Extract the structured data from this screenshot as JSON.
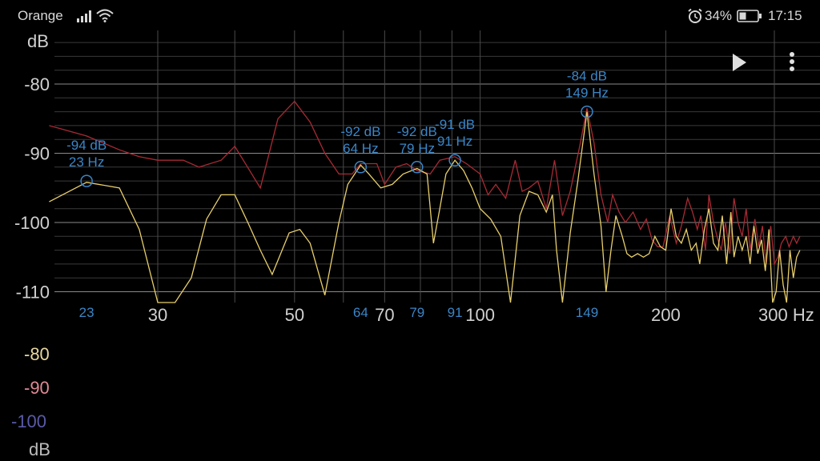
{
  "status_bar": {
    "carrier": "Orange",
    "battery_percent": "34%",
    "time": "17:15",
    "icons": [
      "signal-icon",
      "wifi-icon",
      "alarm-icon",
      "battery-icon"
    ]
  },
  "toolbar": {
    "play_icon": "play-icon",
    "menu_icon": "more-vert-icon"
  },
  "chart_data": {
    "type": "line",
    "ylabel": "dB",
    "xlabel": "",
    "x_scale": "log",
    "xlim": [
      20,
      330
    ],
    "ylim": [
      -115,
      -74
    ],
    "y_ticks": [
      "-80",
      "-90",
      "-100",
      "-110"
    ],
    "y_tick_values": [
      -80,
      -90,
      -100,
      -110
    ],
    "x_ticks": [
      "30",
      "50",
      "70",
      "100",
      "200",
      "300 Hz"
    ],
    "x_tick_values": [
      30,
      50,
      70,
      100,
      200,
      300
    ],
    "peak_ticks": [
      "23",
      "64",
      "79",
      "91",
      "149"
    ],
    "peak_tick_values": [
      23,
      64,
      79,
      91,
      149
    ],
    "peaks": [
      {
        "freq": 23,
        "db": -94,
        "db_label": "-94 dB",
        "freq_label": "23 Hz"
      },
      {
        "freq": 64,
        "db": -92,
        "db_label": "-92 dB",
        "freq_label": "64 Hz"
      },
      {
        "freq": 79,
        "db": -92,
        "db_label": "-92 dB",
        "freq_label": "79 Hz"
      },
      {
        "freq": 91,
        "db": -91,
        "db_label": "-91 dB",
        "freq_label": "91 Hz"
      },
      {
        "freq": 149,
        "db": -84,
        "db_label": "-84 dB",
        "freq_label": "149 Hz"
      }
    ],
    "series": [
      {
        "color": "#a82a34",
        "points": [
          [
            20,
            -86
          ],
          [
            23,
            -87.5
          ],
          [
            26,
            -89.5
          ],
          [
            28,
            -90.5
          ],
          [
            30,
            -91
          ],
          [
            33,
            -91
          ],
          [
            35,
            -92
          ],
          [
            38,
            -91
          ],
          [
            40,
            -89
          ],
          [
            44,
            -95
          ],
          [
            47,
            -85
          ],
          [
            50,
            -82.5
          ],
          [
            53,
            -85.5
          ],
          [
            56,
            -90
          ],
          [
            59,
            -93
          ],
          [
            62,
            -93
          ],
          [
            64,
            -91.5
          ],
          [
            68,
            -91.5
          ],
          [
            70,
            -94.5
          ],
          [
            73,
            -92
          ],
          [
            76,
            -91.5
          ],
          [
            79,
            -92.5
          ],
          [
            83,
            -93
          ],
          [
            86,
            -91
          ],
          [
            91,
            -90.5
          ],
          [
            95,
            -91.5
          ],
          [
            100,
            -93
          ],
          [
            103,
            -96
          ],
          [
            106,
            -94.5
          ],
          [
            110,
            -96.5
          ],
          [
            114,
            -91
          ],
          [
            117,
            -95.5
          ],
          [
            120,
            -95
          ],
          [
            124,
            -94
          ],
          [
            128,
            -98
          ],
          [
            132,
            -91
          ],
          [
            136,
            -99
          ],
          [
            140,
            -95.5
          ],
          [
            145,
            -89
          ],
          [
            149,
            -83.5
          ],
          [
            153,
            -88.5
          ],
          [
            157,
            -96
          ],
          [
            161,
            -100
          ],
          [
            164,
            -96
          ],
          [
            168,
            -98.5
          ],
          [
            172,
            -100
          ],
          [
            177,
            -98.5
          ],
          [
            182,
            -101
          ],
          [
            186,
            -99.5
          ],
          [
            190,
            -102.5
          ],
          [
            194,
            -103.5
          ],
          [
            198,
            -103.5
          ],
          [
            203,
            -99
          ],
          [
            208,
            -103
          ],
          [
            212,
            -100.5
          ],
          [
            217,
            -96.5
          ],
          [
            221,
            -98.5
          ],
          [
            225,
            -101
          ],
          [
            228,
            -99
          ],
          [
            232,
            -104
          ],
          [
            235,
            -96
          ],
          [
            239,
            -100
          ],
          [
            243,
            -102.5
          ],
          [
            246,
            -104
          ],
          [
            250,
            -100
          ],
          [
            254,
            -104.5
          ],
          [
            258,
            -96.5
          ],
          [
            262,
            -100
          ],
          [
            266,
            -102
          ],
          [
            270,
            -98
          ],
          [
            274,
            -104
          ],
          [
            279,
            -99.5
          ],
          [
            283,
            -103.5
          ],
          [
            287,
            -100.5
          ],
          [
            291,
            -106
          ],
          [
            296,
            -100.5
          ],
          [
            300,
            -106
          ],
          [
            304,
            -105
          ],
          [
            308,
            -103
          ],
          [
            313,
            -102
          ],
          [
            317,
            -103.5
          ],
          [
            322,
            -102
          ],
          [
            326,
            -103
          ],
          [
            330,
            -102
          ]
        ]
      },
      {
        "color": "#e8cf6a",
        "points": [
          [
            20,
            -97
          ],
          [
            23,
            -94.2
          ],
          [
            26,
            -95
          ],
          [
            28,
            -101
          ],
          [
            30,
            -113
          ],
          [
            32,
            -130
          ],
          [
            34,
            -108
          ],
          [
            36,
            -99.5
          ],
          [
            38,
            -96
          ],
          [
            40,
            -96
          ],
          [
            42,
            -100
          ],
          [
            44,
            -104
          ],
          [
            46,
            -107.5
          ],
          [
            49,
            -101.5
          ],
          [
            51,
            -101
          ],
          [
            53,
            -103
          ],
          [
            56,
            -110.5
          ],
          [
            59,
            -100
          ],
          [
            61,
            -94.5
          ],
          [
            64,
            -91.7
          ],
          [
            66,
            -93
          ],
          [
            69,
            -95
          ],
          [
            72,
            -94.5
          ],
          [
            75,
            -93
          ],
          [
            79,
            -92.2
          ],
          [
            82,
            -93
          ],
          [
            84,
            -103
          ],
          [
            86,
            -98
          ],
          [
            88,
            -93
          ],
          [
            91,
            -91
          ],
          [
            94,
            -92.5
          ],
          [
            97,
            -95
          ],
          [
            100,
            -98
          ],
          [
            104,
            -99.5
          ],
          [
            108,
            -102
          ],
          [
            112,
            -118
          ],
          [
            116,
            -99
          ],
          [
            120,
            -95.5
          ],
          [
            124,
            -96
          ],
          [
            128,
            -98.5
          ],
          [
            131,
            -96
          ],
          [
            133,
            -104
          ],
          [
            136,
            -114
          ],
          [
            140,
            -101.5
          ],
          [
            144,
            -94
          ],
          [
            149,
            -84
          ],
          [
            153,
            -93
          ],
          [
            157,
            -100.5
          ],
          [
            160,
            -110
          ],
          [
            163,
            -104
          ],
          [
            166,
            -99
          ],
          [
            170,
            -102
          ],
          [
            173,
            -104.5
          ],
          [
            176,
            -105
          ],
          [
            180,
            -104.5
          ],
          [
            184,
            -105
          ],
          [
            188,
            -104.5
          ],
          [
            192,
            -102
          ],
          [
            196,
            -103.5
          ],
          [
            200,
            -104
          ],
          [
            204,
            -98
          ],
          [
            208,
            -102
          ],
          [
            212,
            -103
          ],
          [
            216,
            -101
          ],
          [
            220,
            -104
          ],
          [
            224,
            -103
          ],
          [
            227,
            -106
          ],
          [
            231,
            -101
          ],
          [
            235,
            -98
          ],
          [
            239,
            -103
          ],
          [
            243,
            -104
          ],
          [
            247,
            -99
          ],
          [
            251,
            -106
          ],
          [
            255,
            -98.5
          ],
          [
            258,
            -105
          ],
          [
            262,
            -102
          ],
          [
            266,
            -104
          ],
          [
            270,
            -102
          ],
          [
            274,
            -106
          ],
          [
            278,
            -100.5
          ],
          [
            282,
            -104.5
          ],
          [
            286,
            -102.5
          ],
          [
            290,
            -107
          ],
          [
            294,
            -101
          ],
          [
            298,
            -115
          ],
          [
            302,
            -110
          ],
          [
            306,
            -104
          ],
          [
            310,
            -109
          ],
          [
            314,
            -112
          ],
          [
            318,
            -104
          ],
          [
            322,
            -108
          ],
          [
            326,
            -105
          ],
          [
            330,
            -104
          ]
        ]
      }
    ]
  },
  "legend_scale": {
    "labels": [
      "-80",
      "-90",
      "-100",
      "dB"
    ],
    "colors": [
      "#e8d6a0",
      "#e08a96",
      "#5a5aa8",
      "#bbbbbb"
    ]
  }
}
